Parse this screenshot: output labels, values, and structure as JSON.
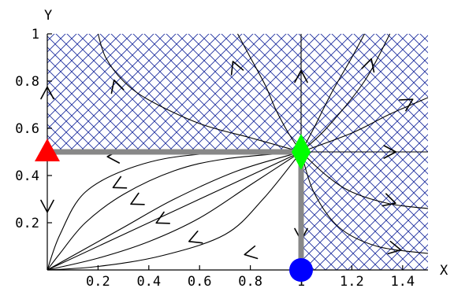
{
  "chart_data": {
    "type": "phase-portrait",
    "xlabel": "X",
    "ylabel": "Y",
    "xlim": [
      0,
      1.5
    ],
    "ylim": [
      0,
      1.0
    ],
    "x_ticks": [
      {
        "value": 0.2,
        "label": "0.2"
      },
      {
        "value": 0.4,
        "label": "0.4"
      },
      {
        "value": 0.6,
        "label": "0.6"
      },
      {
        "value": 0.8,
        "label": "0.8"
      },
      {
        "value": 1.0,
        "label": "1"
      },
      {
        "value": 1.2,
        "label": "1.2"
      },
      {
        "value": 1.4,
        "label": "1.4"
      }
    ],
    "y_ticks": [
      {
        "value": 0.2,
        "label": "0.2"
      },
      {
        "value": 0.4,
        "label": "0.4"
      },
      {
        "value": 0.6,
        "label": "0.6"
      },
      {
        "value": 0.8,
        "label": "0.8"
      },
      {
        "value": 1.0,
        "label": "1"
      }
    ],
    "hatched_regions": [
      {
        "name": "upper",
        "x": [
          0,
          1.5
        ],
        "y": [
          0.5,
          1.0
        ]
      },
      {
        "name": "lower-right",
        "x": [
          1.0,
          1.5
        ],
        "y": [
          0,
          0.5
        ]
      }
    ],
    "hatch_color": "#1f2f9f",
    "highlight_segments": [
      {
        "from": [
          1.0,
          0.5
        ],
        "to": [
          0.0,
          0.5
        ]
      },
      {
        "from": [
          1.0,
          0.5
        ],
        "to": [
          1.0,
          0.0
        ]
      }
    ],
    "highlight_color": "#888888",
    "equilibria": [
      {
        "name": "red-triangle",
        "shape": "triangle",
        "color": "#ff0000",
        "x": 0.0,
        "y": 0.5
      },
      {
        "name": "green-diamond",
        "shape": "diamond",
        "color": "#00ff00",
        "x": 1.0,
        "y": 0.5
      },
      {
        "name": "blue-circle",
        "shape": "circle",
        "color": "#0000ff",
        "x": 1.0,
        "y": 0.0
      }
    ],
    "trajectories": [
      {
        "points": [
          [
            1.0,
            0.5
          ],
          [
            0.9,
            0.53
          ],
          [
            0.8,
            0.56
          ],
          [
            0.6,
            0.62
          ],
          [
            0.4,
            0.72
          ],
          [
            0.3,
            0.8
          ],
          [
            0.23,
            0.9
          ],
          [
            0.2,
            1.0
          ]
        ]
      },
      {
        "points": [
          [
            1.0,
            0.5
          ],
          [
            0.95,
            0.58
          ],
          [
            0.9,
            0.68
          ],
          [
            0.86,
            0.78
          ],
          [
            0.8,
            0.9
          ],
          [
            0.75,
            1.0
          ]
        ]
      },
      {
        "points": [
          [
            1.0,
            0.5
          ],
          [
            1.0,
            1.0
          ]
        ]
      },
      {
        "points": [
          [
            1.0,
            0.5
          ],
          [
            1.05,
            0.6
          ],
          [
            1.12,
            0.75
          ],
          [
            1.2,
            0.9
          ],
          [
            1.25,
            1.0
          ]
        ]
      },
      {
        "points": [
          [
            1.0,
            0.5
          ],
          [
            1.1,
            0.6
          ],
          [
            1.25,
            0.8
          ],
          [
            1.35,
            1.0
          ]
        ]
      },
      {
        "points": [
          [
            1.0,
            0.5
          ],
          [
            1.2,
            0.58
          ],
          [
            1.35,
            0.66
          ],
          [
            1.5,
            0.73
          ]
        ]
      },
      {
        "points": [
          [
            1.0,
            0.5
          ],
          [
            1.5,
            0.5
          ]
        ]
      },
      {
        "points": [
          [
            1.0,
            0.5
          ],
          [
            1.1,
            0.4
          ],
          [
            1.2,
            0.33
          ],
          [
            1.35,
            0.28
          ],
          [
            1.5,
            0.26
          ]
        ]
      },
      {
        "points": [
          [
            1.0,
            0.5
          ],
          [
            1.05,
            0.33
          ],
          [
            1.15,
            0.18
          ],
          [
            1.3,
            0.1
          ],
          [
            1.5,
            0.07
          ]
        ]
      },
      {
        "points": [
          [
            1.0,
            0.5
          ],
          [
            0.5,
            0.25
          ],
          [
            0.0,
            0.0
          ]
        ]
      },
      {
        "points": [
          [
            1.0,
            0.5
          ],
          [
            0.75,
            0.42
          ],
          [
            0.5,
            0.3
          ],
          [
            0.3,
            0.18
          ],
          [
            0.1,
            0.06
          ],
          [
            0.0,
            0.0
          ]
        ]
      },
      {
        "points": [
          [
            1.0,
            0.5
          ],
          [
            0.7,
            0.47
          ],
          [
            0.5,
            0.42
          ],
          [
            0.3,
            0.32
          ],
          [
            0.15,
            0.2
          ],
          [
            0.05,
            0.07
          ],
          [
            0.0,
            0.0
          ]
        ]
      },
      {
        "points": [
          [
            1.0,
            0.5
          ],
          [
            0.6,
            0.49
          ],
          [
            0.35,
            0.44
          ],
          [
            0.15,
            0.33
          ],
          [
            0.05,
            0.15
          ],
          [
            0.0,
            0.0
          ]
        ]
      },
      {
        "points": [
          [
            1.0,
            0.5
          ],
          [
            0.8,
            0.36
          ],
          [
            0.6,
            0.22
          ],
          [
            0.4,
            0.12
          ],
          [
            0.2,
            0.05
          ],
          [
            0.0,
            0.0
          ]
        ]
      },
      {
        "points": [
          [
            1.0,
            0.5
          ],
          [
            0.85,
            0.3
          ],
          [
            0.7,
            0.15
          ],
          [
            0.45,
            0.06
          ],
          [
            0.2,
            0.015
          ],
          [
            0.0,
            0.0
          ]
        ]
      }
    ],
    "direction_arrows": [
      {
        "x": 0.27,
        "y": 0.78,
        "dx": -0.3,
        "dy": 1
      },
      {
        "x": 0.74,
        "y": 0.86,
        "dx": -0.4,
        "dy": 1
      },
      {
        "x": 1.0,
        "y": 0.82,
        "dx": 0,
        "dy": 1
      },
      {
        "x": 1.27,
        "y": 0.87,
        "dx": 0.3,
        "dy": 1
      },
      {
        "x": 1.42,
        "y": 0.71,
        "dx": 1,
        "dy": 0.6
      },
      {
        "x": 1.35,
        "y": 0.5,
        "dx": 1,
        "dy": 0
      },
      {
        "x": 1.35,
        "y": 0.29,
        "dx": 1,
        "dy": -0.3
      },
      {
        "x": 1.37,
        "y": 0.09,
        "dx": 1,
        "dy": -0.2
      },
      {
        "x": 0.26,
        "y": 0.48,
        "dx": -1,
        "dy": 0
      },
      {
        "x": 0.28,
        "y": 0.36,
        "dx": -1,
        "dy": -0.5
      },
      {
        "x": 0.35,
        "y": 0.29,
        "dx": -1,
        "dy": -0.5
      },
      {
        "x": 0.45,
        "y": 0.21,
        "dx": -1,
        "dy": -0.5
      },
      {
        "x": 0.58,
        "y": 0.13,
        "dx": -1,
        "dy": -0.4
      },
      {
        "x": 0.8,
        "y": 0.07,
        "dx": -1,
        "dy": -0.2
      },
      {
        "x": 0.0,
        "y": 0.75,
        "dx": 0,
        "dy": 1
      },
      {
        "x": 0.0,
        "y": 0.27,
        "dx": 0,
        "dy": -1
      },
      {
        "x": 1.0,
        "y": 0.15,
        "dx": 0,
        "dy": -1
      }
    ]
  }
}
